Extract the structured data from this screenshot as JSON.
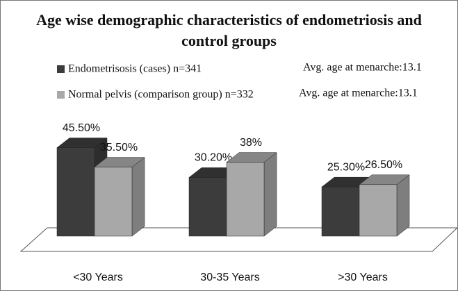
{
  "chart_data": {
    "type": "bar3d",
    "title": "Age wise demographic characteristics of endometriosis and control groups",
    "categories": [
      "<30 Years",
      "30-35 Years",
      ">30 Years"
    ],
    "series": [
      {
        "name": "Endometrisosis (cases) n=341",
        "color": "#3c3c3c",
        "values": [
          45.5,
          30.2,
          25.3
        ],
        "value_labels": [
          "45.50%",
          "30.20%",
          "25.30%"
        ]
      },
      {
        "name": "Normal pelvis (comparison group) n=332",
        "color": "#a8a8a8",
        "values": [
          35.5,
          38,
          26.5
        ],
        "value_labels": [
          "35.50%",
          "38%",
          "26.50%"
        ]
      }
    ],
    "annotations": [
      "Avg. age at menarche:13.1",
      "Avg. age at menarche:13.1"
    ]
  }
}
